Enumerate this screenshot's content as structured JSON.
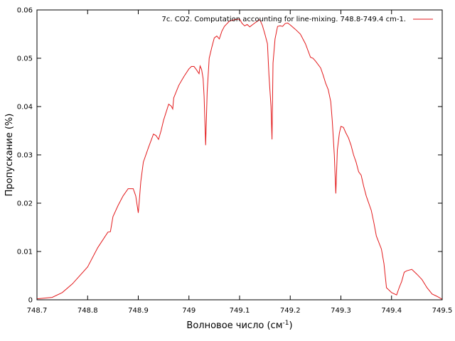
{
  "chart_data": {
    "type": "line",
    "title": "",
    "xlabel": "Волновое число (см",
    "xlabel_sup": "-1",
    "xlabel_end": ")",
    "ylabel": "Пропускание (%)",
    "xlim": [
      748.7,
      749.5
    ],
    "ylim": [
      0,
      0.06
    ],
    "xticks": [
      748.7,
      748.8,
      748.9,
      749.0,
      749.1,
      749.2,
      749.3,
      749.4,
      749.5
    ],
    "xtick_labels": [
      "748.7",
      "748.8",
      "748.9",
      "749",
      "749.1",
      "749.2",
      "749.3",
      "749.4",
      "749.5"
    ],
    "yticks": [
      0,
      0.01,
      0.02,
      0.03,
      0.04,
      0.05,
      0.06
    ],
    "ytick_labels": [
      "0",
      "0.01",
      "0.02",
      "0.03",
      "0.04",
      "0.05",
      "0.06"
    ],
    "grid": false,
    "legend_position": "top-right",
    "series": [
      {
        "name": "7c. CO2. Computation accounting for line-mixing. 748.8-749.4 cm-1.",
        "color": "#e31a1c",
        "x": [
          748.7,
          748.73,
          748.75,
          748.77,
          748.8,
          748.82,
          748.84,
          748.845,
          748.85,
          748.86,
          748.87,
          748.88,
          748.89,
          748.895,
          748.9,
          748.902,
          748.905,
          748.91,
          748.92,
          748.93,
          748.935,
          748.94,
          748.945,
          748.95,
          748.96,
          748.965,
          748.968,
          748.97,
          748.98,
          748.99,
          749.0,
          749.005,
          749.01,
          749.015,
          749.02,
          749.022,
          749.025,
          749.028,
          749.03,
          749.033,
          749.036,
          749.04,
          749.045,
          749.05,
          749.055,
          749.06,
          749.065,
          749.07,
          749.08,
          749.09,
          749.1,
          749.105,
          749.11,
          749.115,
          749.12,
          749.13,
          749.14,
          749.145,
          749.15,
          749.155,
          749.158,
          749.162,
          749.164,
          749.166,
          749.17,
          749.175,
          749.18,
          749.185,
          749.19,
          749.195,
          749.2,
          749.21,
          749.22,
          749.23,
          749.24,
          749.245,
          749.25,
          749.26,
          749.265,
          749.27,
          749.275,
          749.28,
          749.283,
          749.287,
          749.29,
          749.293,
          749.297,
          749.3,
          749.305,
          749.31,
          749.315,
          749.32,
          749.325,
          749.33,
          749.335,
          749.34,
          749.345,
          749.35,
          749.36,
          749.365,
          749.37,
          749.38,
          749.385,
          749.39,
          749.395,
          749.4,
          749.41,
          749.415,
          749.42,
          749.425,
          749.43,
          749.44,
          749.45,
          749.46,
          749.47,
          749.48,
          749.49,
          749.5
        ],
        "y": [
          0.0002,
          0.0005,
          0.0015,
          0.0033,
          0.0068,
          0.0108,
          0.014,
          0.0141,
          0.0172,
          0.0195,
          0.0215,
          0.023,
          0.023,
          0.0215,
          0.018,
          0.0205,
          0.0245,
          0.0285,
          0.0315,
          0.0343,
          0.034,
          0.0332,
          0.035,
          0.0372,
          0.0405,
          0.0401,
          0.0395,
          0.0418,
          0.0444,
          0.0462,
          0.0478,
          0.0483,
          0.0483,
          0.0476,
          0.0468,
          0.0484,
          0.0477,
          0.0458,
          0.042,
          0.032,
          0.043,
          0.05,
          0.0522,
          0.0542,
          0.0546,
          0.054,
          0.0556,
          0.0566,
          0.0577,
          0.058,
          0.0581,
          0.0572,
          0.0567,
          0.057,
          0.0565,
          0.0573,
          0.058,
          0.0568,
          0.055,
          0.053,
          0.0465,
          0.04,
          0.0332,
          0.049,
          0.054,
          0.0566,
          0.0567,
          0.0566,
          0.0572,
          0.0573,
          0.0569,
          0.056,
          0.055,
          0.053,
          0.0502,
          0.05,
          0.0494,
          0.048,
          0.0465,
          0.0448,
          0.0435,
          0.041,
          0.037,
          0.03,
          0.022,
          0.031,
          0.0345,
          0.0359,
          0.0357,
          0.0345,
          0.0335,
          0.032,
          0.03,
          0.0285,
          0.0265,
          0.0258,
          0.0235,
          0.0215,
          0.0185,
          0.016,
          0.0132,
          0.0105,
          0.0075,
          0.0025,
          0.002,
          0.0015,
          0.001,
          0.0025,
          0.0038,
          0.0057,
          0.006,
          0.0063,
          0.0053,
          0.0042,
          0.0025,
          0.0012,
          0.0007,
          0.0001
        ]
      }
    ]
  }
}
